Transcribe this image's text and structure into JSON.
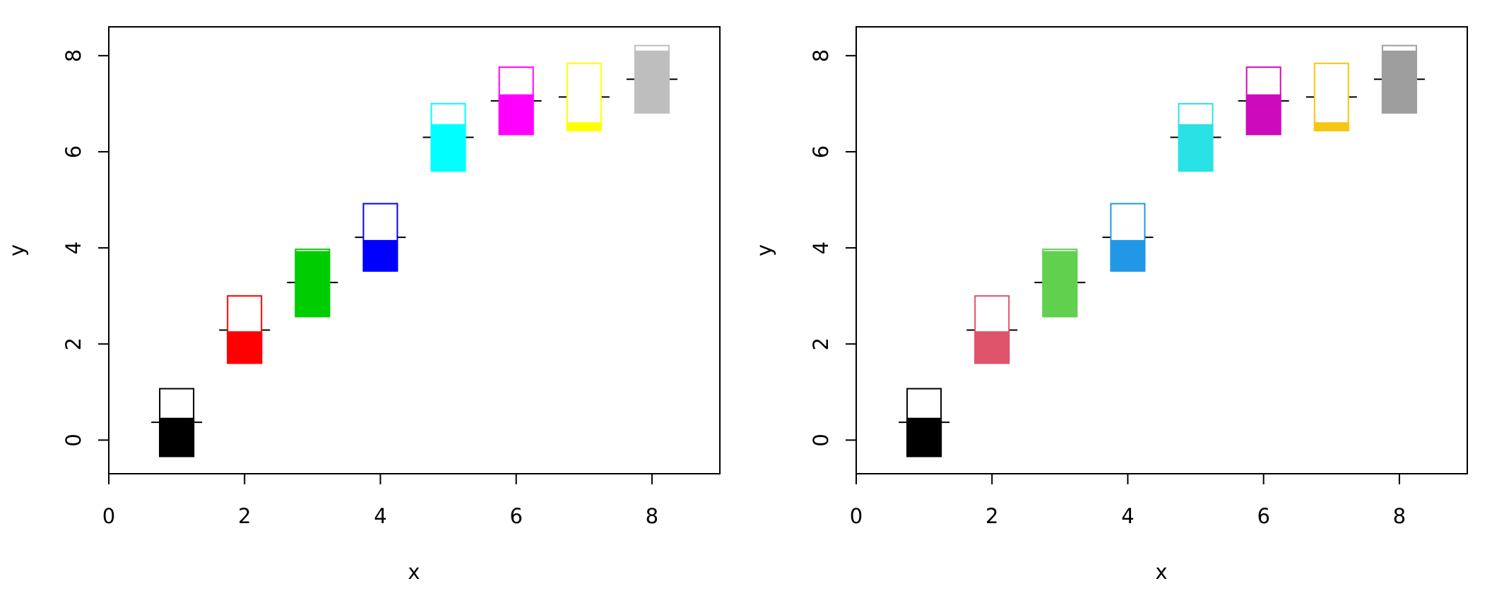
{
  "chart_data": [
    {
      "type": "thermometer",
      "xlabel": "x",
      "ylabel": "y",
      "xlim": [
        0,
        9
      ],
      "ylim": [
        -0.7,
        8.6
      ],
      "x_ticks": [
        0,
        2,
        4,
        6,
        8
      ],
      "y_ticks": [
        0,
        2,
        4,
        6,
        8
      ],
      "symbols": [
        {
          "x": 1,
          "y": 0.37,
          "top": 1.07,
          "fill_top": 0.45,
          "bottom": -0.34,
          "color": "#000000"
        },
        {
          "x": 2,
          "y": 2.29,
          "top": 3.0,
          "fill_top": 2.25,
          "bottom": 1.6,
          "color": "#FF0000"
        },
        {
          "x": 3,
          "y": 3.28,
          "top": 3.97,
          "fill_top": 3.92,
          "bottom": 2.57,
          "color": "#00CD00"
        },
        {
          "x": 4,
          "y": 4.22,
          "top": 4.92,
          "fill_top": 4.15,
          "bottom": 3.52,
          "color": "#0000FF"
        },
        {
          "x": 5,
          "y": 6.3,
          "top": 7.0,
          "fill_top": 6.56,
          "bottom": 5.6,
          "color": "#00FFFF"
        },
        {
          "x": 6,
          "y": 7.06,
          "top": 7.76,
          "fill_top": 7.18,
          "bottom": 6.36,
          "color": "#FF00FF"
        },
        {
          "x": 7,
          "y": 7.14,
          "top": 7.84,
          "fill_top": 6.6,
          "bottom": 6.44,
          "color": "#FFFF00"
        },
        {
          "x": 8,
          "y": 7.51,
          "top": 8.21,
          "fill_top": 8.09,
          "bottom": 6.81,
          "color": "#BEBEBE"
        }
      ]
    },
    {
      "type": "thermometer",
      "xlabel": "x",
      "ylabel": "y",
      "xlim": [
        0,
        9
      ],
      "ylim": [
        -0.7,
        8.6
      ],
      "x_ticks": [
        0,
        2,
        4,
        6,
        8
      ],
      "y_ticks": [
        0,
        2,
        4,
        6,
        8
      ],
      "symbols": [
        {
          "x": 1,
          "y": 0.37,
          "top": 1.07,
          "fill_top": 0.45,
          "bottom": -0.34,
          "color": "#000000"
        },
        {
          "x": 2,
          "y": 2.29,
          "top": 3.0,
          "fill_top": 2.25,
          "bottom": 1.6,
          "color": "#DF536B"
        },
        {
          "x": 3,
          "y": 3.28,
          "top": 3.97,
          "fill_top": 3.92,
          "bottom": 2.57,
          "color": "#61D04F"
        },
        {
          "x": 4,
          "y": 4.22,
          "top": 4.92,
          "fill_top": 4.15,
          "bottom": 3.52,
          "color": "#2297E6"
        },
        {
          "x": 5,
          "y": 6.3,
          "top": 7.0,
          "fill_top": 6.56,
          "bottom": 5.6,
          "color": "#28E2E5"
        },
        {
          "x": 6,
          "y": 7.06,
          "top": 7.76,
          "fill_top": 7.18,
          "bottom": 6.36,
          "color": "#CD0BBC"
        },
        {
          "x": 7,
          "y": 7.14,
          "top": 7.84,
          "fill_top": 6.6,
          "bottom": 6.44,
          "color": "#F5C710"
        },
        {
          "x": 8,
          "y": 7.51,
          "top": 8.21,
          "fill_top": 8.09,
          "bottom": 6.81,
          "color": "#9E9E9E"
        }
      ]
    }
  ]
}
